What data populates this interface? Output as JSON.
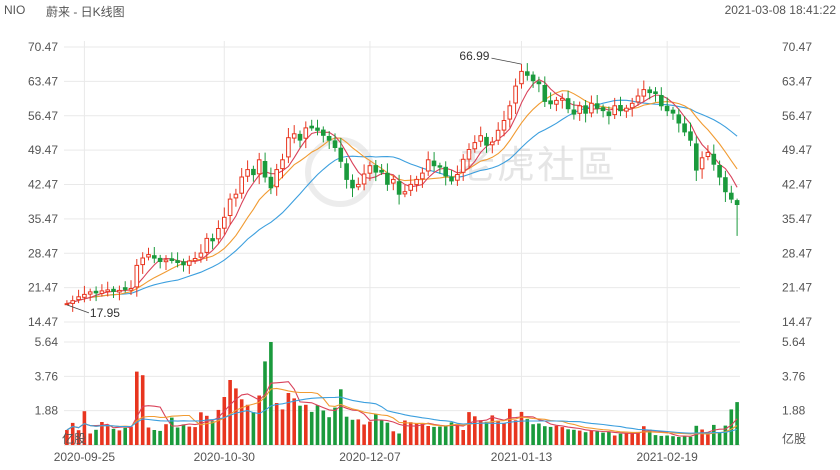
{
  "header": {
    "ticker": "NIO",
    "title": "蔚来 - 日K线图",
    "timestamp": "2021-03-08 18:41:22"
  },
  "watermark": "老虎社區",
  "volume_unit": "亿股",
  "colors": {
    "up": "#e8351f",
    "down": "#1a9a3c",
    "ma5": "#d9425a",
    "ma10": "#f19b32",
    "ma20": "#3c9fde",
    "grid": "#e9e9e9",
    "text": "#555555"
  },
  "chart_data": {
    "type": "candlestick",
    "price_axis": {
      "ticks": [
        "70.47",
        "63.47",
        "56.47",
        "49.47",
        "42.47",
        "35.47",
        "28.47",
        "21.47",
        "14.47"
      ],
      "range": [
        14.47,
        70.47
      ]
    },
    "volume_axis": {
      "ticks": [
        "5.64",
        "3.76",
        "1.88"
      ],
      "range": [
        0,
        5.64
      ]
    },
    "x_ticks": [
      {
        "label": "2020-09-25",
        "index": 3
      },
      {
        "label": "2020-10-30",
        "index": 27
      },
      {
        "label": "2020-12-07",
        "index": 52
      },
      {
        "label": "2021-01-13",
        "index": 78
      },
      {
        "label": "2021-02-19",
        "index": 103
      }
    ],
    "annotations": [
      {
        "label": "66.99",
        "index": 78,
        "value": 66.99,
        "kind": "high"
      },
      {
        "label": "17.95",
        "index": 0,
        "value": 17.95,
        "kind": "low"
      }
    ],
    "closes": [
      18.2,
      18.8,
      19.6,
      20.1,
      20.6,
      20.4,
      20.8,
      21.0,
      20.7,
      20.9,
      21.1,
      21.3,
      26.0,
      27.5,
      28.2,
      27.5,
      26.8,
      27.1,
      27.0,
      26.6,
      26.1,
      26.9,
      27.4,
      28.5,
      31.5,
      31.0,
      33.5,
      35.8,
      39.5,
      40.5,
      44.0,
      45.5,
      44.5,
      47.5,
      44.0,
      41.8,
      45.5,
      47.5,
      52.0,
      52.8,
      51.5,
      54.0,
      54.0,
      53.5,
      52.5,
      51.5,
      50.0,
      47.2,
      43.5,
      41.8,
      42.5,
      44.6,
      46.3,
      45.0,
      45.0,
      42.5,
      43.5,
      40.5,
      41.0,
      42.5,
      43.5,
      44.8,
      47.5,
      46.3,
      46.0,
      44.2,
      43.2,
      44.5,
      47.6,
      49.6,
      51.0,
      52.4,
      50.5,
      51.1,
      53.5,
      55.5,
      58.5,
      62.5,
      65.5,
      64.7,
      63.6,
      63.0,
      59.4,
      58.9,
      59.6,
      60.0,
      57.9,
      56.8,
      58.5,
      57.0,
      59.0,
      58.0,
      57.5,
      56.5,
      58.5,
      57.5,
      58.0,
      59.0,
      60.5,
      61.8,
      61.2,
      61.0,
      58.5,
      57.5,
      57.0,
      55.0,
      53.2,
      51.5,
      45.4,
      47.9,
      49.0,
      46.6,
      44.0,
      41.0,
      39.5,
      38.4
    ],
    "volumes": [
      0.82,
      1.21,
      0.81,
      1.85,
      0.63,
      0.83,
      1.26,
      1.11,
      0.88,
      0.8,
      0.94,
      1.01,
      4.02,
      3.82,
      0.96,
      0.82,
      0.77,
      1.14,
      1.5,
      0.96,
      1.13,
      1.01,
      0.98,
      1.79,
      1.6,
      1.3,
      1.92,
      2.63,
      3.56,
      3.1,
      2.5,
      2.2,
      1.8,
      2.71,
      4.58,
      5.64,
      2.3,
      1.95,
      2.85,
      2.55,
      2.15,
      2.2,
      1.81,
      2.18,
      1.89,
      1.52,
      2.05,
      3.05,
      1.55,
      1.38,
      1.4,
      1.12,
      1.28,
      1.7,
      1.35,
      1.22,
      0.75,
      0.63,
      1.34,
      1.25,
      1.2,
      1.15,
      1.04,
      0.99,
      1.01,
      1.05,
      1.24,
      1.08,
      0.82,
      1.8,
      1.57,
      1.36,
      1.27,
      1.62,
      1.34,
      1.2,
      1.98,
      1.35,
      1.81,
      1.42,
      1.14,
      1.18,
      1.03,
      0.99,
      1.05,
      0.98,
      0.86,
      0.83,
      0.79,
      0.7,
      0.77,
      0.75,
      0.68,
      0.73,
      0.52,
      0.62,
      0.66,
      0.68,
      0.72,
      1.03,
      0.85,
      0.54,
      0.5,
      0.52,
      0.48,
      0.44,
      0.49,
      0.45,
      1.05,
      0.85,
      0.63,
      1.1,
      0.7,
      1.06,
      1.95,
      2.35
    ]
  }
}
